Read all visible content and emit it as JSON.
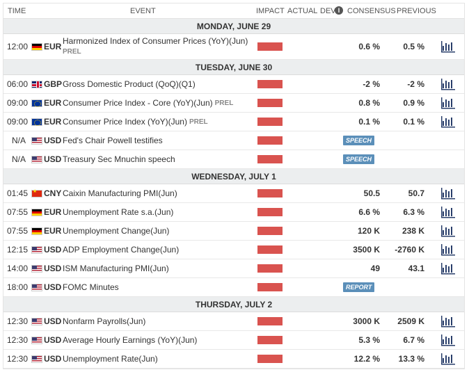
{
  "header": {
    "time": "TIME",
    "event": "EVENT",
    "impact": "IMPACT",
    "actual": "ACTUAL",
    "dev": "DEV",
    "info": "i",
    "consensus": "CONSENSUS",
    "previous": "PREVIOUS"
  },
  "colors": {
    "impact_high": "#d9534f",
    "badge": "#5b8fb9",
    "day_bg": "#eceeef"
  },
  "days": [
    {
      "label": "MONDAY, JUNE 29",
      "events": [
        {
          "time": "12:00",
          "flag": "de",
          "currency": "EUR",
          "event": "Harmonized Index of Consumer Prices (YoY)(Jun)",
          "tag": "PREL",
          "consensus": "0.6 %",
          "previous": "0.5 %",
          "chart": true,
          "tall": true
        }
      ]
    },
    {
      "label": "TUESDAY, JUNE 30",
      "events": [
        {
          "time": "06:00",
          "flag": "gb",
          "currency": "GBP",
          "event": "Gross Domestic Product (QoQ)(Q1)",
          "consensus": "-2 %",
          "previous": "-2 %",
          "chart": true
        },
        {
          "time": "09:00",
          "flag": "eu",
          "currency": "EUR",
          "event": "Consumer Price Index - Core (YoY)(Jun)",
          "tag": "PREL",
          "consensus": "0.8 %",
          "previous": "0.9 %",
          "chart": true
        },
        {
          "time": "09:00",
          "flag": "eu",
          "currency": "EUR",
          "event": "Consumer Price Index (YoY)(Jun)",
          "tag": "PREL",
          "consensus": "0.1 %",
          "previous": "0.1 %",
          "chart": true
        },
        {
          "time": "N/A",
          "flag": "us",
          "currency": "USD",
          "event": "Fed's Chair Powell testifies",
          "badge": "SPEECH"
        },
        {
          "time": "N/A",
          "flag": "us",
          "currency": "USD",
          "event": "Treasury Sec Mnuchin speech",
          "badge": "SPEECH"
        }
      ]
    },
    {
      "label": "WEDNESDAY, JULY 1",
      "events": [
        {
          "time": "01:45",
          "flag": "cn",
          "currency": "CNY",
          "event": "Caixin Manufacturing PMI(Jun)",
          "consensus": "50.5",
          "previous": "50.7",
          "chart": true
        },
        {
          "time": "07:55",
          "flag": "de",
          "currency": "EUR",
          "event": "Unemployment Rate s.a.(Jun)",
          "consensus": "6.6 %",
          "previous": "6.3 %",
          "chart": true
        },
        {
          "time": "07:55",
          "flag": "de",
          "currency": "EUR",
          "event": "Unemployment Change(Jun)",
          "consensus": "120 K",
          "previous": "238 K",
          "chart": true
        },
        {
          "time": "12:15",
          "flag": "us",
          "currency": "USD",
          "event": "ADP Employment Change(Jun)",
          "consensus": "3500 K",
          "previous": "-2760 K",
          "chart": true
        },
        {
          "time": "14:00",
          "flag": "us",
          "currency": "USD",
          "event": "ISM Manufacturing PMI(Jun)",
          "consensus": "49",
          "previous": "43.1",
          "chart": true
        },
        {
          "time": "18:00",
          "flag": "us",
          "currency": "USD",
          "event": "FOMC Minutes",
          "badge": "REPORT"
        }
      ]
    },
    {
      "label": "THURSDAY, JULY 2",
      "events": [
        {
          "time": "12:30",
          "flag": "us",
          "currency": "USD",
          "event": "Nonfarm Payrolls(Jun)",
          "consensus": "3000 K",
          "previous": "2509 K",
          "chart": true
        },
        {
          "time": "12:30",
          "flag": "us",
          "currency": "USD",
          "event": "Average Hourly Earnings (YoY)(Jun)",
          "consensus": "5.3 %",
          "previous": "6.7 %",
          "chart": true
        },
        {
          "time": "12:30",
          "flag": "us",
          "currency": "USD",
          "event": "Unemployment Rate(Jun)",
          "consensus": "12.2 %",
          "previous": "13.3 %",
          "chart": true
        }
      ]
    }
  ]
}
